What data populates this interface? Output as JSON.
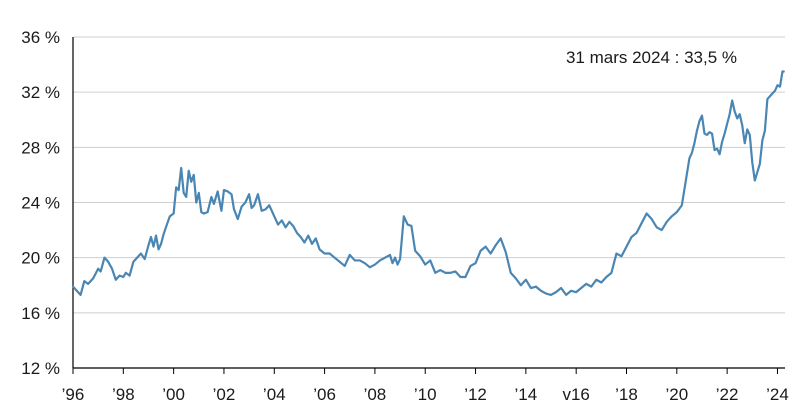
{
  "chart_data": {
    "type": "line",
    "title": "",
    "xlabel": "",
    "ylabel": "",
    "annotation": "31 mars 2024 : 33,5 %",
    "ylim": [
      12,
      36
    ],
    "xlim": [
      1996,
      2024.3
    ],
    "grid": true,
    "line_color": "#4a86b4",
    "y_ticks": [
      {
        "value": 12,
        "label": "12 %"
      },
      {
        "value": 16,
        "label": "16 %"
      },
      {
        "value": 20,
        "label": "20 %"
      },
      {
        "value": 24,
        "label": "24 %"
      },
      {
        "value": 28,
        "label": "28 %"
      },
      {
        "value": 32,
        "label": "32 %"
      },
      {
        "value": 36,
        "label": "36 %"
      }
    ],
    "x_ticks": [
      {
        "value": 1996,
        "label": "’96"
      },
      {
        "value": 1998,
        "label": "’98"
      },
      {
        "value": 2000,
        "label": "’00"
      },
      {
        "value": 2002,
        "label": "’02"
      },
      {
        "value": 2004,
        "label": "’04"
      },
      {
        "value": 2006,
        "label": "’06"
      },
      {
        "value": 2008,
        "label": "’08"
      },
      {
        "value": 2010,
        "label": "’10"
      },
      {
        "value": 2012,
        "label": "’12"
      },
      {
        "value": 2014,
        "label": "’14"
      },
      {
        "value": 2016,
        "label": "v16"
      },
      {
        "value": 2018,
        "label": "’18"
      },
      {
        "value": 2020,
        "label": "’20"
      },
      {
        "value": 2022,
        "label": "’22"
      },
      {
        "value": 2024,
        "label": "’24"
      }
    ],
    "series": [
      {
        "x": [
          1996.0,
          1996.15,
          1996.3,
          1996.45,
          1996.6,
          1996.8,
          1997.0,
          1997.1,
          1997.25,
          1997.4,
          1997.55,
          1997.7,
          1997.85,
          1998.0,
          1998.1,
          1998.25,
          1998.4,
          1998.55,
          1998.7,
          1998.85,
          1999.0,
          1999.1,
          1999.2,
          1999.3,
          1999.4,
          1999.5,
          1999.6,
          1999.75,
          1999.85,
          2000.0,
          2000.1,
          2000.2,
          2000.3,
          2000.4,
          2000.5,
          2000.6,
          2000.7,
          2000.8,
          2000.9,
          2001.0,
          2001.1,
          2001.2,
          2001.35,
          2001.5,
          2001.6,
          2001.75,
          2001.9,
          2002.0,
          2002.15,
          2002.3,
          2002.4,
          2002.55,
          2002.7,
          2002.85,
          2003.0,
          2003.1,
          2003.2,
          2003.35,
          2003.5,
          2003.65,
          2003.8,
          2004.0,
          2004.15,
          2004.3,
          2004.45,
          2004.6,
          2004.75,
          2004.9,
          2005.05,
          2005.2,
          2005.35,
          2005.5,
          2005.65,
          2005.8,
          2006.0,
          2006.2,
          2006.4,
          2006.6,
          2006.8,
          2007.0,
          2007.2,
          2007.4,
          2007.6,
          2007.8,
          2008.0,
          2008.2,
          2008.4,
          2008.6,
          2008.7,
          2008.8,
          2008.9,
          2009.0,
          2009.15,
          2009.3,
          2009.45,
          2009.6,
          2009.8,
          2010.0,
          2010.2,
          2010.4,
          2010.6,
          2010.8,
          2011.0,
          2011.2,
          2011.4,
          2011.6,
          2011.8,
          2012.0,
          2012.2,
          2012.4,
          2012.6,
          2012.8,
          2013.0,
          2013.2,
          2013.4,
          2013.6,
          2013.8,
          2014.0,
          2014.2,
          2014.4,
          2014.6,
          2014.8,
          2015.0,
          2015.2,
          2015.4,
          2015.6,
          2015.8,
          2016.0,
          2016.2,
          2016.4,
          2016.6,
          2016.8,
          2017.0,
          2017.2,
          2017.4,
          2017.6,
          2017.8,
          2018.0,
          2018.2,
          2018.4,
          2018.6,
          2018.8,
          2019.0,
          2019.2,
          2019.4,
          2019.6,
          2019.8,
          2020.0,
          2020.2,
          2020.35,
          2020.5,
          2020.6,
          2020.7,
          2020.8,
          2020.9,
          2021.0,
          2021.1,
          2021.2,
          2021.3,
          2021.4,
          2021.5,
          2021.6,
          2021.7,
          2021.8,
          2021.9,
          2022.0,
          2022.1,
          2022.2,
          2022.3,
          2022.4,
          2022.5,
          2022.6,
          2022.7,
          2022.8,
          2022.9,
          2023.0,
          2023.1,
          2023.2,
          2023.3,
          2023.4,
          2023.5,
          2023.6,
          2023.75,
          2023.9,
          2024.0,
          2024.1,
          2024.2,
          2024.25
        ],
        "y": [
          17.9,
          17.6,
          17.3,
          18.3,
          18.1,
          18.5,
          19.2,
          19.0,
          20.0,
          19.7,
          19.2,
          18.4,
          18.7,
          18.6,
          18.9,
          18.7,
          19.7,
          20.0,
          20.3,
          19.9,
          20.9,
          21.5,
          20.8,
          21.6,
          20.6,
          21.0,
          21.7,
          22.5,
          23.0,
          23.2,
          25.1,
          24.9,
          26.5,
          24.7,
          24.4,
          26.3,
          25.5,
          26.0,
          24.0,
          24.7,
          23.3,
          23.2,
          23.3,
          24.4,
          23.9,
          24.8,
          23.4,
          24.9,
          24.8,
          24.6,
          23.5,
          22.8,
          23.7,
          24.0,
          24.6,
          23.6,
          23.8,
          24.6,
          23.4,
          23.5,
          23.8,
          23.0,
          22.4,
          22.7,
          22.2,
          22.6,
          22.3,
          21.8,
          21.5,
          21.1,
          21.6,
          21.0,
          21.4,
          20.6,
          20.3,
          20.3,
          20.0,
          19.7,
          19.4,
          20.2,
          19.8,
          19.8,
          19.6,
          19.3,
          19.5,
          19.8,
          20.0,
          20.2,
          19.6,
          20.0,
          19.5,
          19.9,
          23.0,
          22.4,
          22.3,
          20.5,
          20.1,
          19.5,
          19.8,
          18.9,
          19.1,
          18.9,
          18.9,
          19.0,
          18.6,
          18.6,
          19.4,
          19.6,
          20.5,
          20.8,
          20.3,
          20.9,
          21.4,
          20.4,
          18.9,
          18.5,
          18.0,
          18.4,
          17.8,
          17.9,
          17.6,
          17.4,
          17.3,
          17.5,
          17.8,
          17.3,
          17.6,
          17.5,
          17.8,
          18.1,
          17.9,
          18.4,
          18.2,
          18.6,
          18.9,
          20.3,
          20.1,
          20.8,
          21.5,
          21.8,
          22.5,
          23.2,
          22.8,
          22.2,
          22.0,
          22.6,
          23.0,
          23.3,
          23.8,
          25.5,
          27.2,
          27.6,
          28.3,
          29.2,
          29.9,
          30.3,
          29.0,
          28.9,
          29.1,
          29.0,
          27.8,
          27.9,
          27.5,
          28.4,
          29.0,
          29.7,
          30.4,
          31.4,
          30.6,
          30.1,
          30.4,
          29.6,
          28.3,
          29.3,
          28.9,
          26.9,
          25.6,
          26.2,
          26.8,
          28.5,
          29.2,
          31.5,
          31.8,
          32.1,
          32.5,
          32.4,
          33.5,
          33.5
        ]
      }
    ]
  }
}
